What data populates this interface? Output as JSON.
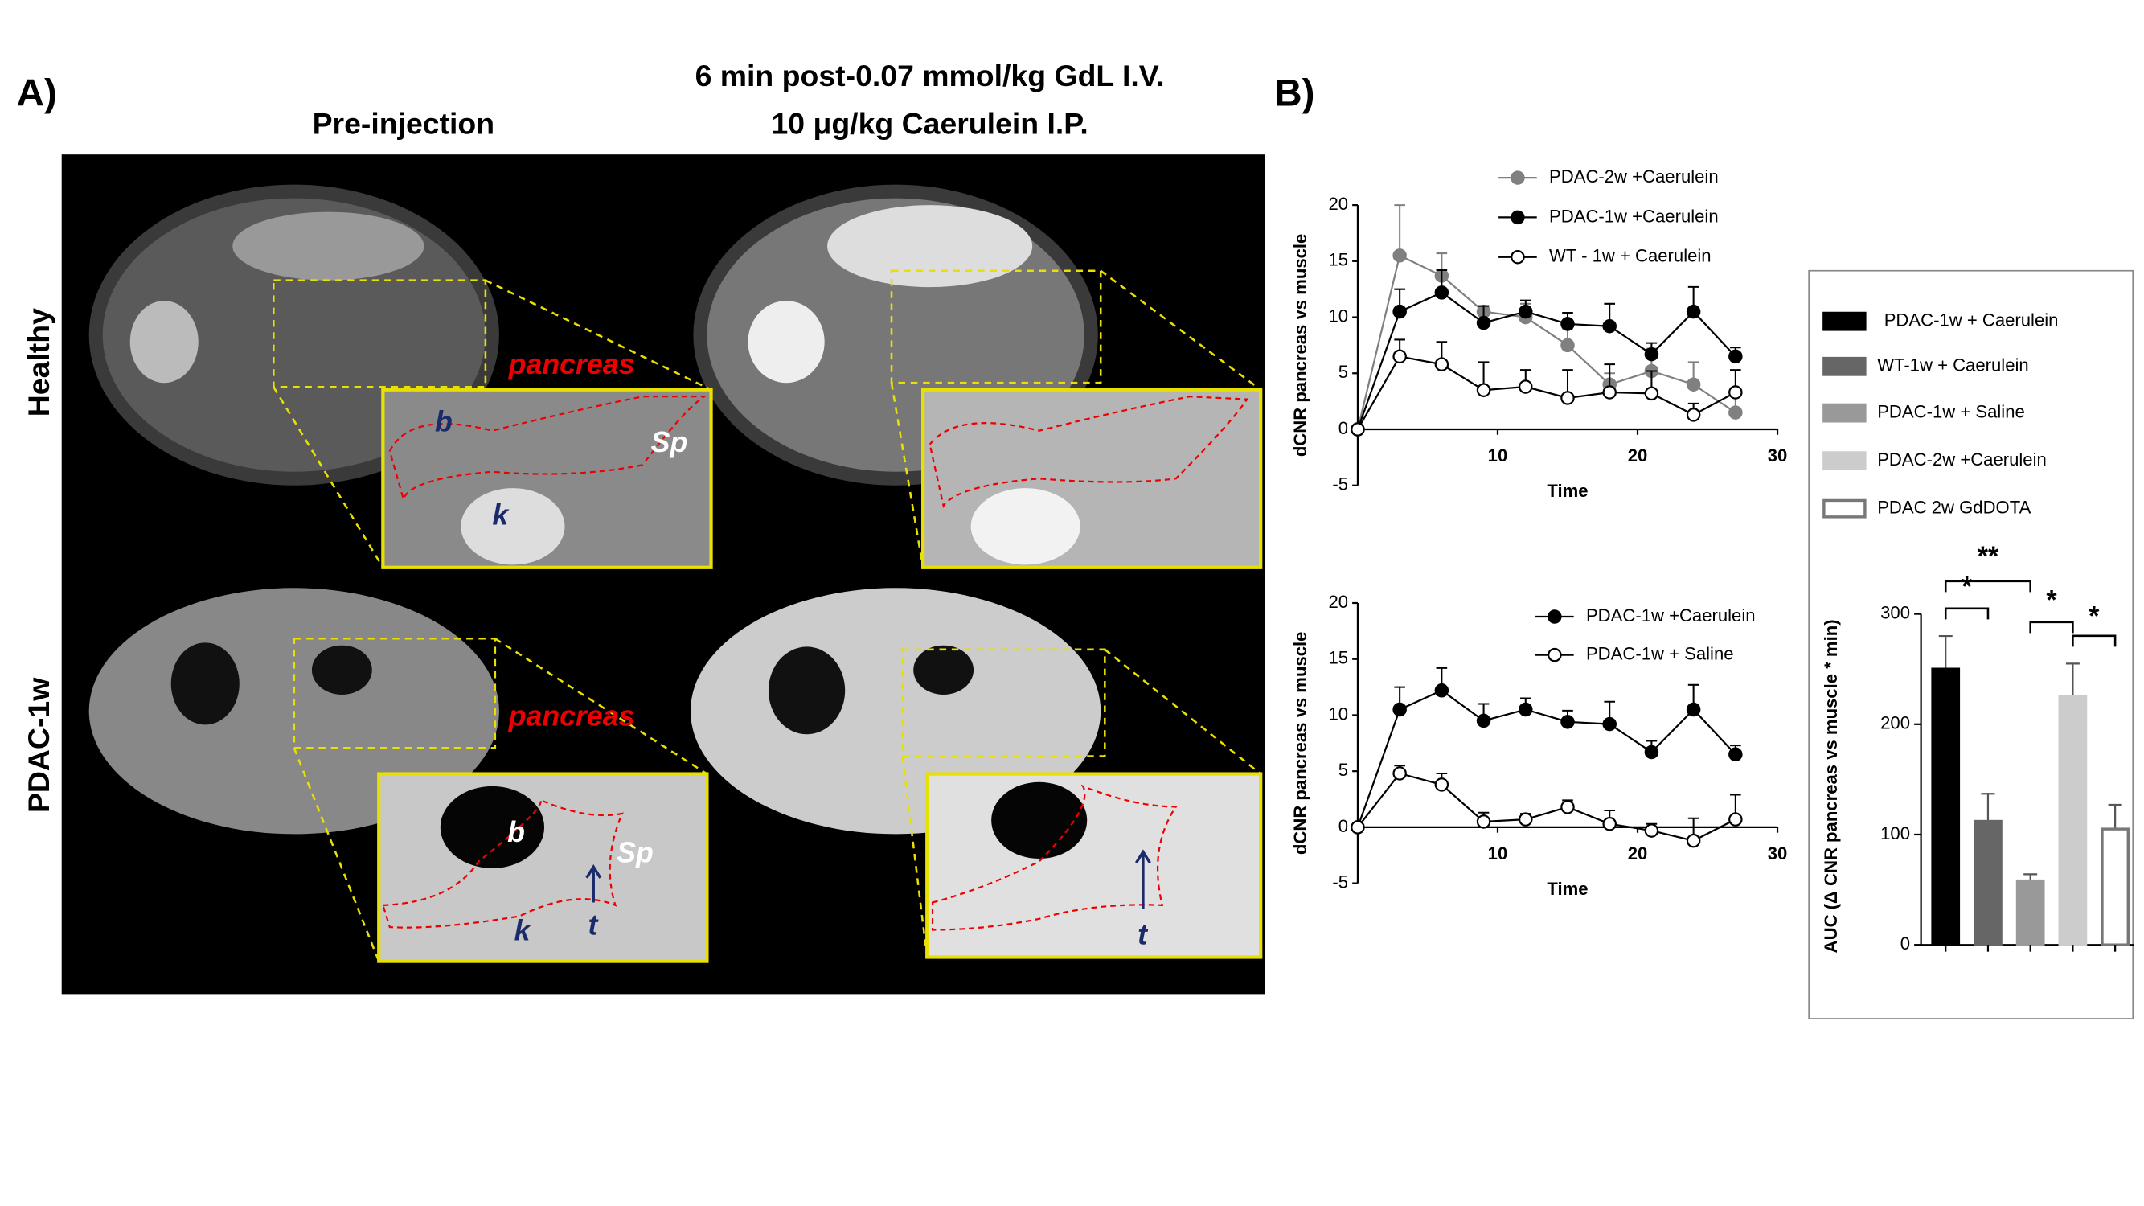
{
  "panel_a": {
    "label": "A)",
    "col_headers": [
      "Pre-injection",
      "6 min post-0.07 mmol/kg GdL I.V.",
      "10 μg/kg Caerulein I.P."
    ],
    "row_headers": [
      "Healthy",
      "PDAC-1w"
    ],
    "labels": [
      "pancreas",
      "b",
      "Sp",
      "k",
      "pancreas",
      "b",
      "Sp",
      "k",
      "t",
      "t"
    ]
  },
  "panel_b": {
    "label": "B)"
  },
  "chart_data": [
    {
      "type": "line",
      "xlabel": "Time",
      "ylabel": "dCNR pancreas vs muscle",
      "x": [
        0,
        3,
        6,
        9,
        12,
        15,
        18,
        21,
        24,
        27
      ],
      "xlim": [
        0,
        30
      ],
      "xticks": [
        10,
        20,
        30
      ],
      "ylim": [
        -5,
        20
      ],
      "yticks": [
        -5,
        0,
        5,
        10,
        15,
        20
      ],
      "series": [
        {
          "name": "PDAC-2w +Caerulein",
          "color": "#808080",
          "values": [
            0,
            15.5,
            13.7,
            10.5,
            10,
            7.5,
            4,
            5.2,
            4,
            1.5
          ],
          "errors": [
            0,
            4.5,
            2,
            0.5,
            1.2,
            1.5,
            1,
            2,
            2,
            1.5
          ]
        },
        {
          "name": "PDAC-1w +Caerulein",
          "color": "#000000",
          "values": [
            0,
            10.5,
            12.2,
            9.5,
            10.5,
            9.4,
            9.2,
            6.7,
            10.5,
            6.5
          ],
          "errors": [
            0,
            2,
            2,
            1.5,
            1,
            1,
            2,
            1,
            2.2,
            0.8
          ]
        },
        {
          "name": "WT - 1w + Caerulein",
          "color": "#ffffff",
          "values": [
            0,
            6.5,
            5.8,
            3.5,
            3.8,
            2.8,
            3.3,
            3.2,
            1.3,
            3.3
          ],
          "errors": [
            0,
            1.5,
            2,
            2.5,
            1.5,
            2.5,
            2.5,
            2,
            1,
            2
          ]
        }
      ]
    },
    {
      "type": "line",
      "xlabel": "Time",
      "ylabel": "dCNR pancreas vs muscle",
      "x": [
        0,
        3,
        6,
        9,
        12,
        15,
        18,
        21,
        24,
        27
      ],
      "xlim": [
        0,
        30
      ],
      "xticks": [
        10,
        20,
        30
      ],
      "ylim": [
        -5,
        20
      ],
      "yticks": [
        -5,
        0,
        5,
        10,
        15,
        20
      ],
      "series": [
        {
          "name": "PDAC-1w +Caerulein",
          "color": "#000000",
          "values": [
            0,
            10.5,
            12.2,
            9.5,
            10.5,
            9.4,
            9.2,
            6.7,
            10.5,
            6.5
          ],
          "errors": [
            0,
            2,
            2,
            1.5,
            1,
            1,
            2,
            1,
            2.2,
            0.8
          ]
        },
        {
          "name": "PDAC-1w + Saline",
          "color": "#ffffff",
          "values": [
            0,
            4.8,
            3.8,
            0.5,
            0.7,
            1.8,
            0.3,
            -0.3,
            -1.2,
            0.7
          ],
          "errors": [
            0,
            0.7,
            1,
            0.8,
            0.5,
            0.6,
            1.2,
            0.6,
            2,
            2.2
          ]
        }
      ]
    },
    {
      "type": "bar",
      "ylabel": "AUC (Δ CNR pancreas vs muscle * min)",
      "categories": [
        null
      ],
      "ylim": [
        0,
        300
      ],
      "yticks": [
        0,
        100,
        200,
        300
      ],
      "series": [
        {
          "name": "PDAC-1w + Caerulein",
          "color": "#000000",
          "values": [
            250
          ],
          "errors": [
            30
          ]
        },
        {
          "name": "WT-1w + Caerulein",
          "color": "#666666",
          "values": [
            112
          ],
          "errors": [
            25
          ]
        },
        {
          "name": "PDAC-1w + Saline",
          "color": "#999999",
          "values": [
            58
          ],
          "errors": [
            6
          ]
        },
        {
          "name": "PDAC-2w +Caerulein",
          "color": "#cccccc",
          "values": [
            225
          ],
          "errors": [
            30
          ]
        },
        {
          "name": "PDAC 2w GdDOTA",
          "color": "#ffffff",
          "values": [
            105
          ],
          "errors": [
            22
          ]
        }
      ],
      "significance": [
        "**",
        "*",
        "*",
        "*"
      ]
    }
  ]
}
